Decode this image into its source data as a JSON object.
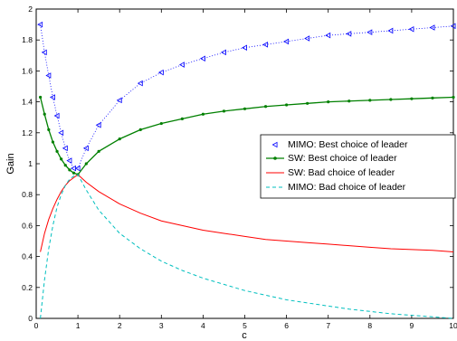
{
  "chart_data": {
    "type": "line",
    "xlabel": "c",
    "ylabel": "Gain",
    "xlim": [
      0,
      10
    ],
    "ylim": [
      0,
      2
    ],
    "xticks": [
      "0",
      "1",
      "2",
      "3",
      "4",
      "5",
      "6",
      "7",
      "8",
      "9",
      "10"
    ],
    "yticks": [
      "0",
      "0.2",
      "0.4",
      "0.6",
      "0.8",
      "1",
      "1.2",
      "1.4",
      "1.6",
      "1.8",
      "2"
    ],
    "grid": false,
    "legend_position": "center-right",
    "series": [
      {
        "name": "MIMO: Best choice of leader",
        "color": "#0000ff",
        "style": "triangle-left-markers-dotted",
        "x": [
          0.1,
          0.2,
          0.3,
          0.4,
          0.5,
          0.6,
          0.7,
          0.8,
          0.9,
          1.0,
          1.2,
          1.5,
          2,
          2.5,
          3,
          3.5,
          4,
          4.5,
          5,
          5.5,
          6,
          6.5,
          7,
          7.5,
          8,
          8.5,
          9,
          9.5,
          10
        ],
        "y": [
          1.9,
          1.72,
          1.57,
          1.43,
          1.31,
          1.2,
          1.1,
          1.02,
          0.97,
          0.97,
          1.1,
          1.25,
          1.41,
          1.52,
          1.59,
          1.64,
          1.68,
          1.72,
          1.75,
          1.77,
          1.79,
          1.81,
          1.83,
          1.84,
          1.85,
          1.86,
          1.87,
          1.88,
          1.89
        ]
      },
      {
        "name": "SW: Best choice of leader",
        "color": "#008000",
        "style": "solid-with-dots",
        "x": [
          0.1,
          0.2,
          0.3,
          0.4,
          0.5,
          0.6,
          0.7,
          0.8,
          0.9,
          1.0,
          1.2,
          1.5,
          2,
          2.5,
          3,
          3.5,
          4,
          4.5,
          5,
          5.5,
          6,
          6.5,
          7,
          7.5,
          8,
          8.5,
          9,
          9.5,
          10
        ],
        "y": [
          1.43,
          1.32,
          1.22,
          1.14,
          1.08,
          1.03,
          0.99,
          0.96,
          0.94,
          0.93,
          1.0,
          1.08,
          1.16,
          1.22,
          1.26,
          1.29,
          1.32,
          1.34,
          1.355,
          1.37,
          1.38,
          1.39,
          1.4,
          1.405,
          1.41,
          1.415,
          1.42,
          1.425,
          1.43
        ]
      },
      {
        "name": "SW: Bad choice of leader",
        "color": "#ff0000",
        "style": "solid",
        "x": [
          0.1,
          0.2,
          0.3,
          0.4,
          0.5,
          0.6,
          0.7,
          0.8,
          0.9,
          1.0,
          1.2,
          1.5,
          2,
          2.5,
          3,
          3.5,
          4,
          4.5,
          5,
          5.5,
          6,
          6.5,
          7,
          7.5,
          8,
          8.5,
          9,
          9.5,
          10
        ],
        "y": [
          0.43,
          0.55,
          0.64,
          0.71,
          0.77,
          0.82,
          0.86,
          0.89,
          0.91,
          0.93,
          0.88,
          0.82,
          0.74,
          0.68,
          0.63,
          0.6,
          0.57,
          0.55,
          0.53,
          0.51,
          0.5,
          0.49,
          0.48,
          0.47,
          0.46,
          0.45,
          0.445,
          0.44,
          0.43
        ]
      },
      {
        "name": "MIMO: Bad choice of leader",
        "color": "#00bfbf",
        "style": "dashed",
        "x": [
          0.1,
          0.2,
          0.3,
          0.4,
          0.5,
          0.6,
          0.7,
          0.8,
          0.9,
          1.0,
          1.2,
          1.5,
          2,
          2.5,
          3,
          3.5,
          4,
          4.5,
          5,
          5.5,
          6,
          6.5,
          7,
          7.5,
          8,
          8.5,
          9,
          9.5,
          10
        ],
        "y": [
          0.0,
          0.25,
          0.45,
          0.6,
          0.72,
          0.8,
          0.86,
          0.9,
          0.92,
          0.93,
          0.83,
          0.7,
          0.55,
          0.45,
          0.37,
          0.31,
          0.26,
          0.22,
          0.18,
          0.15,
          0.12,
          0.1,
          0.08,
          0.06,
          0.045,
          0.03,
          0.02,
          0.01,
          0.0
        ]
      }
    ]
  }
}
